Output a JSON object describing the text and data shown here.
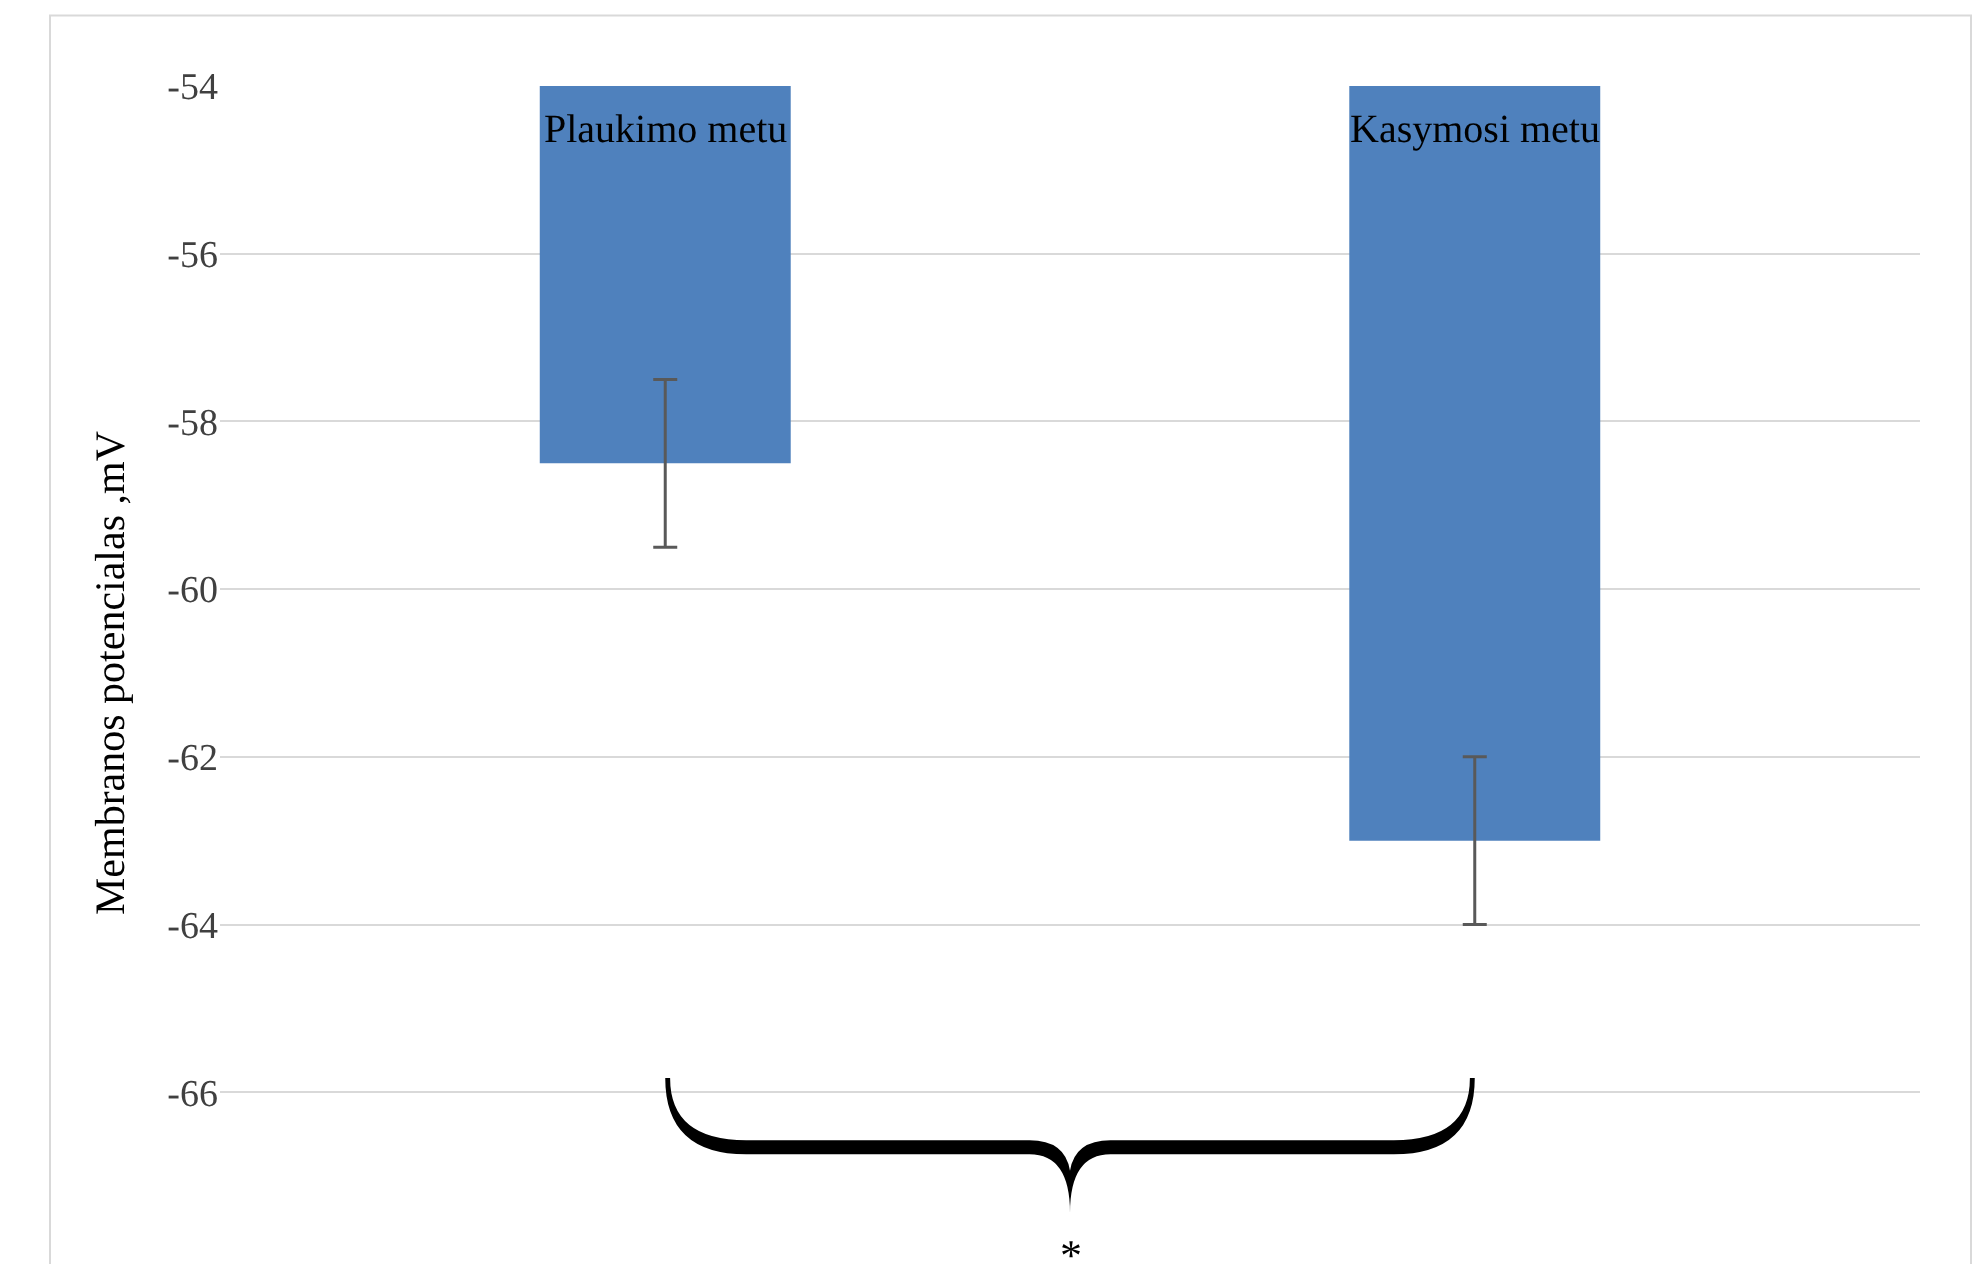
{
  "chart_data": {
    "type": "bar",
    "ylabel": "Membranos potencialas ,mV",
    "categories": [
      "Plaukimo metu",
      "Kasymosi metu"
    ],
    "values": [
      -58.5,
      -63
    ],
    "errors": [
      1,
      1
    ],
    "color": "#4f81bd",
    "ylim": [
      -68,
      -54
    ],
    "yticks": [
      -54,
      -56,
      -58,
      -60,
      -62,
      -64,
      -66
    ],
    "grid": "y",
    "legend": false,
    "annotations": [
      "*"
    ]
  }
}
